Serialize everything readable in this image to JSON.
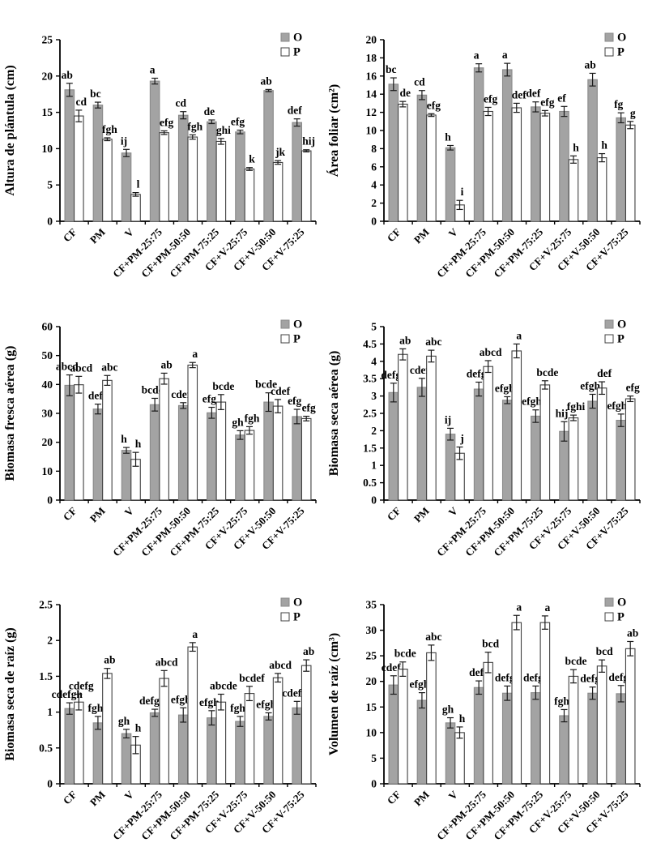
{
  "styles": {
    "o_fill": "#a3a3a3",
    "o_stroke": "#8a8a8a",
    "p_fill": "#ffffff",
    "p_stroke": "#404040",
    "axis_color": "#000000",
    "error_color": "#1a1a1a",
    "text_color": "#000000",
    "background": "#ffffff"
  },
  "legend": {
    "o_label": "O",
    "p_label": "P"
  },
  "chart_data": [
    {
      "type": "bar",
      "ylabel": "Altura de plántula (cm)",
      "xlabel": "",
      "ylim": [
        0,
        25
      ],
      "ytick_step": 5,
      "yticks": [
        0,
        5,
        10,
        15,
        20,
        25
      ],
      "grid": false,
      "legend": [
        "O",
        "P"
      ],
      "legend_position": "top-right",
      "categories": [
        "CF",
        "PM",
        "V",
        "CF+PM-25:75",
        "CF+PM-50:50",
        "CF+PM-75:25",
        "CF+V-25:75",
        "CF+V-50:50",
        "CF+V-75:25"
      ],
      "series": [
        {
          "name": "O",
          "values": [
            18.1,
            16.0,
            9.4,
            19.3,
            14.6,
            13.7,
            12.3,
            18.0,
            13.6
          ],
          "errors": [
            0.9,
            0.4,
            0.5,
            0.4,
            0.5,
            0.25,
            0.25,
            0.15,
            0.5
          ],
          "letters": [
            "ab",
            "bc",
            "ij",
            "a",
            "cd",
            "de",
            "efg",
            "ab",
            "def"
          ]
        },
        {
          "name": "P",
          "values": [
            14.5,
            11.3,
            3.7,
            12.2,
            11.6,
            11.0,
            7.2,
            8.1,
            9.7
          ],
          "errors": [
            0.8,
            0.2,
            0.25,
            0.25,
            0.3,
            0.4,
            0.2,
            0.25,
            0.15
          ],
          "letters": [
            "cd",
            "fgh",
            "l",
            "efg",
            "fgh",
            "ghi",
            "k",
            "jk",
            "hij"
          ]
        }
      ]
    },
    {
      "type": "bar",
      "ylabel": "Área foliar  (cm²)",
      "xlabel": "",
      "ylim": [
        0,
        20
      ],
      "ytick_step": 2,
      "yticks": [
        0,
        2,
        4,
        6,
        8,
        10,
        12,
        14,
        16,
        18,
        20
      ],
      "grid": false,
      "legend": [
        "O",
        "P"
      ],
      "legend_position": "top-right",
      "categories": [
        "CF",
        "PM",
        "V",
        "CF+PM-25:75",
        "CF+PM-50:50",
        "CF+PM-75:25",
        "CF+V-25:75",
        "CF+V-50:50",
        "CF+V-75:25"
      ],
      "series": [
        {
          "name": "O",
          "values": [
            15.1,
            13.9,
            8.1,
            16.9,
            16.7,
            12.6,
            12.1,
            15.6,
            11.4
          ],
          "errors": [
            0.7,
            0.5,
            0.25,
            0.45,
            0.7,
            0.55,
            0.55,
            0.7,
            0.55
          ],
          "letters": [
            "bc",
            "cd",
            "h",
            "a",
            "a",
            "def",
            "ef",
            "ab",
            "fg"
          ]
        },
        {
          "name": "P",
          "values": [
            12.9,
            11.7,
            1.8,
            12.1,
            12.5,
            11.9,
            6.8,
            7.0,
            10.6
          ],
          "errors": [
            0.3,
            0.15,
            0.5,
            0.45,
            0.5,
            0.3,
            0.4,
            0.45,
            0.4
          ],
          "letters": [
            "de",
            "efg",
            "i",
            "efg",
            "def",
            "efg",
            "h",
            "h",
            "g"
          ]
        }
      ]
    },
    {
      "type": "bar",
      "ylabel": "Biomasa fresca aérea (g)",
      "xlabel": "",
      "ylim": [
        0,
        60
      ],
      "ytick_step": 10,
      "yticks": [
        0,
        10,
        20,
        30,
        40,
        50,
        60
      ],
      "grid": false,
      "legend": [
        "O",
        "P"
      ],
      "legend_position": "top-right",
      "categories": [
        "CF",
        "PM",
        "V",
        "CF+PM-25:75",
        "CF+PM-50:50",
        "CF+PM-75:25",
        "CF+V-25:75",
        "CF+V-50:50",
        "CF+V-75:25"
      ],
      "series": [
        {
          "name": "O",
          "values": [
            39.7,
            31.5,
            17.2,
            33.0,
            32.7,
            30.2,
            22.5,
            33.9,
            28.9
          ],
          "errors": [
            3.6,
            1.7,
            1.0,
            2.2,
            1.0,
            1.9,
            1.5,
            3.2,
            2.5
          ],
          "letters": [
            "abcd",
            "def",
            "h",
            "bcde",
            "cdef",
            "efg",
            "gh",
            "bcde",
            "efg"
          ]
        },
        {
          "name": "P",
          "values": [
            39.9,
            41.4,
            14.1,
            42.0,
            46.7,
            33.9,
            24.1,
            32.5,
            28.2
          ],
          "errors": [
            2.9,
            1.7,
            2.4,
            1.9,
            0.9,
            2.6,
            1.3,
            2.3,
            0.8
          ],
          "letters": [
            "abcd",
            "abc",
            "h",
            "ab",
            "a",
            "bcde",
            "fgh",
            "cdef",
            "efg"
          ]
        }
      ]
    },
    {
      "type": "bar",
      "ylabel": "Biomasa seca aérea (g)",
      "xlabel": "",
      "ylim": [
        0,
        5
      ],
      "ytick_step": 0.5,
      "yticks": [
        0,
        0.5,
        1,
        1.5,
        2,
        2.5,
        3,
        3.5,
        4,
        4.5,
        5
      ],
      "grid": false,
      "legend": [
        "O",
        "P"
      ],
      "legend_position": "top-right",
      "categories": [
        "CF",
        "PM",
        "V",
        "CF+PM-25:75",
        "CF+PM-50:50",
        "CF+PM-75:25",
        "CF+V-25:75",
        "CF+V-50:50",
        "CF+V-75:25"
      ],
      "series": [
        {
          "name": "O",
          "values": [
            3.1,
            3.25,
            1.9,
            3.2,
            2.88,
            2.42,
            1.98,
            2.85,
            2.3
          ],
          "errors": [
            0.27,
            0.26,
            0.17,
            0.2,
            0.1,
            0.18,
            0.28,
            0.2,
            0.18
          ],
          "letters": [
            "defg",
            "cdef",
            "ij",
            "defg",
            "efgh",
            "efghi",
            "hij",
            "efgh",
            "efghi"
          ]
        },
        {
          "name": "P",
          "values": [
            4.2,
            4.15,
            1.35,
            3.85,
            4.3,
            3.32,
            2.37,
            3.23,
            2.92
          ],
          "errors": [
            0.16,
            0.17,
            0.18,
            0.17,
            0.2,
            0.12,
            0.08,
            0.18,
            0.08
          ],
          "letters": [
            "ab",
            "abc",
            "j",
            "abcd",
            "a",
            "bcde",
            "fghi",
            "def",
            "efg"
          ]
        }
      ]
    },
    {
      "type": "bar",
      "ylabel": "Biomasa seca  de raíz (g)",
      "xlabel": "",
      "ylim": [
        0,
        2.5
      ],
      "ytick_step": 0.5,
      "yticks": [
        0,
        0.5,
        1,
        1.5,
        2,
        2.5
      ],
      "grid": false,
      "legend": [
        "O",
        "P"
      ],
      "legend_position": "top-right",
      "categories": [
        "CF",
        "PM",
        "V",
        "CF+PM-25:75",
        "CF+PM-50:50",
        "CF+PM-75:25",
        "CF+V-25:75",
        "CF+V-50:50",
        "CF+V-75:25"
      ],
      "series": [
        {
          "name": "O",
          "values": [
            1.05,
            0.85,
            0.7,
            0.99,
            0.96,
            0.92,
            0.87,
            0.94,
            1.06
          ],
          "errors": [
            0.08,
            0.09,
            0.06,
            0.05,
            0.1,
            0.1,
            0.07,
            0.05,
            0.09
          ],
          "letters": [
            "cdefgh",
            "fgh",
            "gh",
            "defgh",
            "efgh",
            "efgh",
            "fgh",
            "efgh",
            "cdefg"
          ]
        },
        {
          "name": "P",
          "values": [
            1.14,
            1.54,
            0.54,
            1.47,
            1.91,
            1.14,
            1.26,
            1.48,
            1.65
          ],
          "errors": [
            0.11,
            0.07,
            0.12,
            0.11,
            0.06,
            0.11,
            0.1,
            0.06,
            0.08
          ],
          "letters": [
            "cdefg",
            "ab",
            "h",
            "abcd",
            "a",
            "abcde",
            "bcdef",
            "abcd",
            "ab"
          ]
        }
      ]
    },
    {
      "type": "bar",
      "ylabel": "Volumen de raíz  (cm³)",
      "xlabel": "",
      "ylim": [
        0,
        35
      ],
      "ytick_step": 5,
      "yticks": [
        0,
        5,
        10,
        15,
        20,
        25,
        30,
        35
      ],
      "grid": false,
      "legend": [
        "O",
        "P"
      ],
      "legend_position": "top-right",
      "categories": [
        "CF",
        "PM",
        "V",
        "CF+PM-25:75",
        "CF+PM-50:50",
        "CF+PM-75:25",
        "CF+V-25:75",
        "CF+V-50:50",
        "CF+V-75:25"
      ],
      "series": [
        {
          "name": "O",
          "values": [
            19.3,
            16.3,
            11.9,
            18.8,
            17.7,
            17.8,
            13.3,
            17.7,
            17.6
          ],
          "errors": [
            1.8,
            1.5,
            1.0,
            1.3,
            1.4,
            1.3,
            1.2,
            1.2,
            1.6
          ],
          "letters": [
            "cdef",
            "efgh",
            "gh",
            "def",
            "defg",
            "defg",
            "fgh",
            "defg",
            "defg"
          ]
        },
        {
          "name": "P",
          "values": [
            22.4,
            25.6,
            10.0,
            23.7,
            31.5,
            31.5,
            21.0,
            23.0,
            26.4
          ],
          "errors": [
            1.4,
            1.5,
            1.1,
            2.0,
            1.4,
            1.3,
            1.3,
            1.2,
            1.4
          ],
          "letters": [
            "bcde",
            "abc",
            "h",
            "bcd",
            "a",
            "a",
            "bcde",
            "bcd",
            "ab"
          ]
        }
      ]
    }
  ]
}
